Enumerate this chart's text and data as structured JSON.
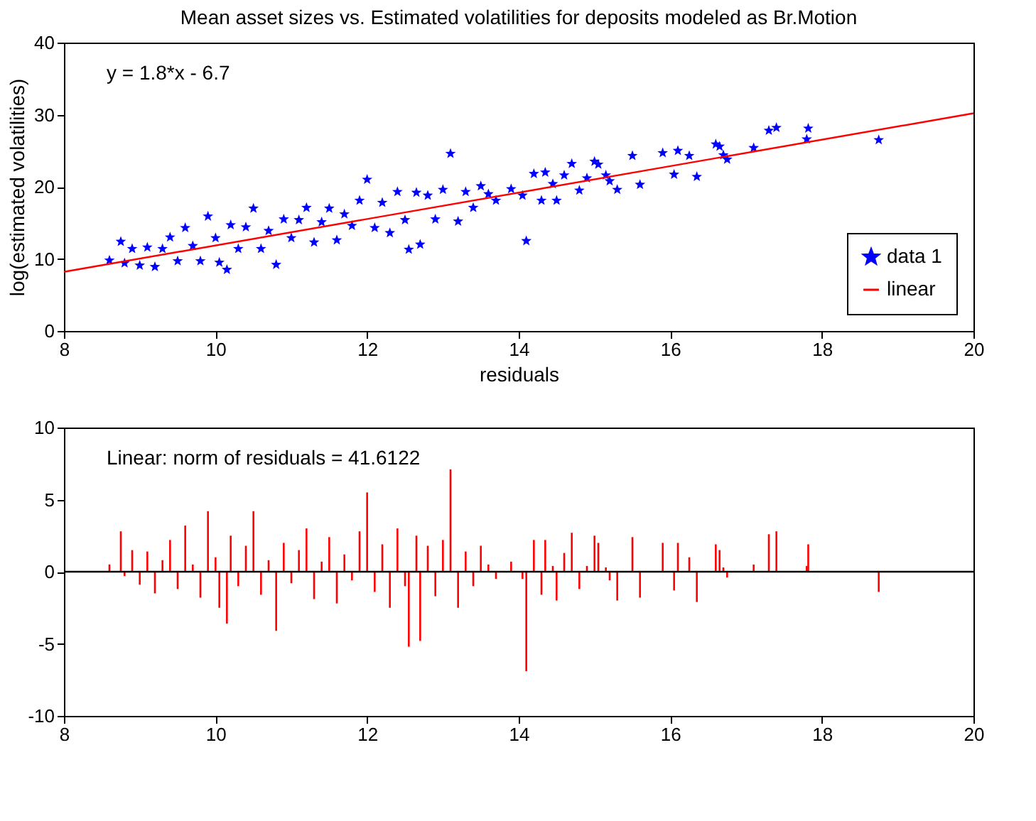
{
  "chart_data": [
    {
      "type": "scatter",
      "title": "Mean asset sizes vs. Estimated volatilities for deposits modeled as Br.Motion",
      "xlabel": "residuals",
      "ylabel": "log(estimated volatilities)",
      "annotations": [
        "y = 1.8*x - 6.7"
      ],
      "xlim": [
        8,
        20
      ],
      "ylim": [
        0,
        40
      ],
      "xticks": [
        8,
        10,
        12,
        14,
        16,
        18,
        20
      ],
      "yticks": [
        0,
        10,
        20,
        30,
        40
      ],
      "grid": false,
      "legend": "bottom right",
      "series": [
        {
          "name": "data 1",
          "marker": "star",
          "color": "#0000ff",
          "x": [
            8.6,
            8.75,
            8.8,
            8.9,
            9.0,
            9.1,
            9.2,
            9.3,
            9.4,
            9.5,
            9.6,
            9.7,
            9.8,
            9.9,
            10.0,
            10.05,
            10.15,
            10.2,
            10.3,
            10.4,
            10.5,
            10.6,
            10.7,
            10.8,
            10.9,
            11.0,
            11.1,
            11.2,
            11.3,
            11.4,
            11.5,
            11.6,
            11.7,
            11.8,
            11.9,
            12.0,
            12.1,
            12.2,
            12.3,
            12.4,
            12.5,
            12.55,
            12.65,
            12.7,
            12.8,
            12.9,
            13.0,
            13.1,
            13.2,
            13.3,
            13.4,
            13.5,
            13.6,
            13.7,
            13.9,
            14.05,
            14.1,
            14.2,
            14.3,
            14.35,
            14.45,
            14.5,
            14.6,
            14.7,
            14.8,
            14.9,
            15.0,
            15.05,
            15.15,
            15.2,
            15.3,
            15.5,
            15.6,
            15.9,
            16.05,
            16.1,
            16.25,
            16.35,
            16.6,
            16.65,
            16.7,
            16.75,
            17.1,
            17.3,
            17.4,
            17.8,
            17.82,
            18.75
          ],
          "values": [
            9.8,
            12.4,
            9.4,
            11.4,
            9.1,
            11.6,
            8.9,
            11.4,
            13.0,
            9.7,
            14.3,
            11.8,
            9.7,
            15.9,
            12.9,
            9.5,
            8.5,
            14.7,
            11.4,
            14.4,
            17.0,
            11.4,
            13.9,
            9.2,
            15.5,
            12.9,
            15.4,
            17.1,
            12.3,
            15.1,
            17.0,
            12.6,
            16.2,
            14.6,
            18.1,
            21.0,
            14.3,
            17.8,
            13.6,
            19.3,
            15.4,
            11.3,
            19.2,
            12.0,
            18.8,
            15.5,
            19.6,
            24.6,
            15.2,
            19.3,
            17.1,
            20.1,
            19.0,
            18.1,
            19.7,
            18.8,
            12.5,
            21.8,
            18.1,
            22.0,
            20.4,
            18.1,
            21.6,
            23.2,
            19.5,
            21.2,
            23.5,
            23.1,
            21.6,
            20.8,
            19.6,
            24.3,
            20.3,
            24.7,
            21.7,
            25.0,
            24.3,
            21.4,
            25.9,
            25.6,
            24.4,
            23.8,
            25.4,
            27.8,
            28.2,
            26.6,
            28.1,
            26.5
          ]
        },
        {
          "name": "linear",
          "type": "line",
          "line_style": "solid",
          "color": "#ff0000",
          "x": [
            8,
            20
          ],
          "values": [
            8.2,
            30.2
          ]
        }
      ]
    },
    {
      "type": "bar",
      "annotations": [
        "Linear: norm of residuals = 41.6122"
      ],
      "xlim": [
        8,
        20
      ],
      "ylim": [
        -10,
        10
      ],
      "xticks": [
        8,
        10,
        12,
        14,
        16,
        18,
        20
      ],
      "yticks": [
        -10,
        -5,
        0,
        5,
        10
      ],
      "grid": false,
      "ref_lines": [
        {
          "axis": "y",
          "value": 0,
          "color": "#000000"
        }
      ],
      "series": [
        {
          "color": "#ff0000",
          "x": [
            8.6,
            8.75,
            8.8,
            8.9,
            9.0,
            9.1,
            9.2,
            9.3,
            9.4,
            9.5,
            9.6,
            9.7,
            9.8,
            9.9,
            10.0,
            10.05,
            10.15,
            10.2,
            10.3,
            10.4,
            10.5,
            10.6,
            10.7,
            10.8,
            10.9,
            11.0,
            11.1,
            11.2,
            11.3,
            11.4,
            11.5,
            11.6,
            11.7,
            11.8,
            11.9,
            12.0,
            12.1,
            12.2,
            12.3,
            12.4,
            12.5,
            12.55,
            12.65,
            12.7,
            12.8,
            12.9,
            13.0,
            13.1,
            13.2,
            13.3,
            13.4,
            13.5,
            13.6,
            13.7,
            13.9,
            14.05,
            14.1,
            14.2,
            14.3,
            14.35,
            14.45,
            14.5,
            14.6,
            14.7,
            14.8,
            14.9,
            15.0,
            15.05,
            15.15,
            15.2,
            15.3,
            15.5,
            15.6,
            15.9,
            16.05,
            16.1,
            16.25,
            16.35,
            16.6,
            16.65,
            16.7,
            16.75,
            17.1,
            17.3,
            17.4,
            17.8,
            17.82,
            18.75
          ],
          "values": [
            0.5,
            2.8,
            -0.3,
            1.5,
            -0.9,
            1.4,
            -1.5,
            0.8,
            2.2,
            -1.2,
            3.2,
            0.5,
            -1.8,
            4.2,
            1.0,
            -2.5,
            -3.6,
            2.5,
            -1.0,
            1.8,
            4.2,
            -1.6,
            0.8,
            -4.1,
            2.0,
            -0.8,
            1.5,
            3.0,
            -1.9,
            0.7,
            2.4,
            -2.2,
            1.2,
            -0.6,
            2.8,
            5.5,
            -1.4,
            1.9,
            -2.5,
            3.0,
            -1.0,
            -5.2,
            2.5,
            -4.8,
            1.8,
            -1.7,
            2.2,
            7.1,
            -2.5,
            1.4,
            -1.0,
            1.8,
            0.5,
            -0.5,
            0.7,
            -0.5,
            -6.9,
            2.2,
            -1.6,
            2.2,
            0.4,
            -2.0,
            1.3,
            2.7,
            -1.2,
            0.4,
            2.5,
            2.0,
            0.3,
            -0.6,
            -2.0,
            2.4,
            -1.8,
            2.0,
            -1.3,
            2.0,
            1.0,
            -2.1,
            1.9,
            1.5,
            0.3,
            -0.4,
            0.5,
            2.6,
            2.8,
            0.4,
            1.9,
            -1.4
          ]
        }
      ]
    }
  ]
}
